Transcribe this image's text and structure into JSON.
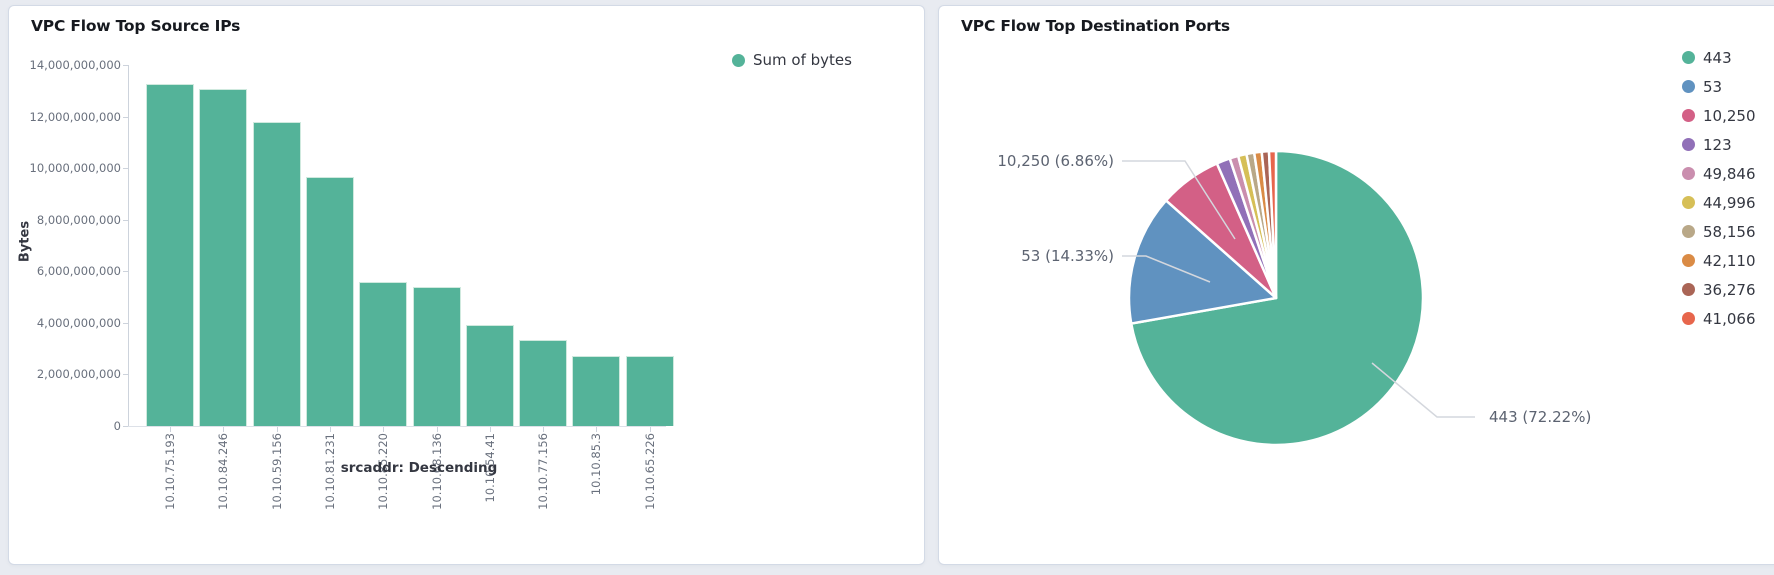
{
  "chart_data": [
    {
      "type": "bar",
      "title": "VPC Flow Top Source IPs",
      "legend": {
        "label": "Sum of bytes",
        "color": "#54B399",
        "position": "top-right"
      },
      "xlabel": "srcaddr: Descending",
      "ylabel": "Bytes",
      "categories": [
        "10.10.75.193",
        "10.10.84.246",
        "10.10.59.156",
        "10.10.81.231",
        "10.10.85.220",
        "10.10.68.136",
        "10.10.54.41",
        "10.10.77.156",
        "10.10.85.3",
        "10.10.65.226"
      ],
      "values": [
        13250000000,
        13050000000,
        11780000000,
        9640000000,
        5570000000,
        5380000000,
        3930000000,
        3340000000,
        2730000000,
        2700000000
      ],
      "ylim": [
        0,
        14000000000
      ],
      "ytick_step": 2000000000,
      "ytick_labels": [
        "0",
        "2,000,000,000",
        "4,000,000,000",
        "6,000,000,000",
        "8,000,000,000",
        "10,000,000,000",
        "12,000,000,000",
        "14,000,000,000"
      ],
      "grid": false,
      "bar_color": "#54B399"
    },
    {
      "type": "pie",
      "title": "VPC Flow Top Destination Ports",
      "legend_position": "right",
      "slices": [
        {
          "label": "443",
          "percent": 72.22,
          "color": "#54B399",
          "labeled_on_chart": true
        },
        {
          "label": "53",
          "percent": 14.33,
          "color": "#6092C0",
          "labeled_on_chart": true
        },
        {
          "label": "10,250",
          "percent": 6.86,
          "color": "#D36086",
          "labeled_on_chart": true
        },
        {
          "label": "123",
          "percent": 1.5,
          "color": "#9170B8",
          "labeled_on_chart": false
        },
        {
          "label": "49,846",
          "percent": 0.95,
          "color": "#CA8EAE",
          "labeled_on_chart": false
        },
        {
          "label": "44,996",
          "percent": 0.92,
          "color": "#D6BF57",
          "labeled_on_chart": false
        },
        {
          "label": "58,156",
          "percent": 0.85,
          "color": "#B9A888",
          "labeled_on_chart": false
        },
        {
          "label": "42,110",
          "percent": 0.82,
          "color": "#DA8B45",
          "labeled_on_chart": false
        },
        {
          "label": "36,276",
          "percent": 0.79,
          "color": "#AA6556",
          "labeled_on_chart": false
        },
        {
          "label": "41,066",
          "percent": 0.76,
          "color": "#E7664C",
          "labeled_on_chart": false
        }
      ],
      "callouts": [
        {
          "text": "10,250 (6.86%)"
        },
        {
          "text": "53 (14.33%)"
        },
        {
          "text": "443 (72.22%)"
        }
      ]
    }
  ]
}
